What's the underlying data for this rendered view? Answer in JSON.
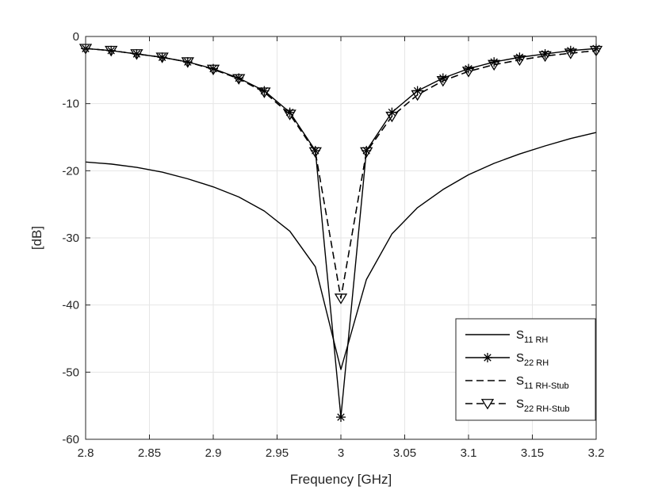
{
  "chart_data": {
    "type": "line",
    "xlabel": "Frequency [GHz]",
    "ylabel": "[dB]",
    "xlim": [
      2.8,
      3.2
    ],
    "ylim": [
      -60,
      0
    ],
    "grid": true,
    "legend_position": "bottom-right",
    "x_ticks": [
      "2.8",
      "2.85",
      "2.9",
      "2.95",
      "3",
      "3.05",
      "3.1",
      "3.15",
      "3.2"
    ],
    "y_ticks": [
      "0",
      "-10",
      "-20",
      "-30",
      "-40",
      "-50",
      "-60"
    ],
    "x": [
      2.8,
      2.82,
      2.84,
      2.86,
      2.88,
      2.9,
      2.92,
      2.94,
      2.96,
      2.98,
      3.0,
      3.02,
      3.04,
      3.06,
      3.08,
      3.1,
      3.12,
      3.14,
      3.16,
      3.18,
      3.2
    ],
    "series": [
      {
        "name_main": "S",
        "name_sub": "11 RH",
        "line": "solid",
        "marker": "none",
        "color": "#000000",
        "values": [
          -18.7,
          -19.0,
          -19.5,
          -20.2,
          -21.2,
          -22.4,
          -23.9,
          -26.0,
          -29.0,
          -34.3,
          -49.6,
          -36.2,
          -29.4,
          -25.5,
          -22.8,
          -20.6,
          -18.9,
          -17.5,
          -16.3,
          -15.2,
          -14.3
        ]
      },
      {
        "name_main": "S",
        "name_sub": "22 RH",
        "line": "solid",
        "marker": "asterisk",
        "color": "#000000",
        "values": [
          -1.8,
          -2.1,
          -2.6,
          -3.1,
          -3.8,
          -4.8,
          -6.2,
          -8.1,
          -11.3,
          -17.0,
          -56.7,
          -17.0,
          -11.3,
          -8.1,
          -6.2,
          -4.8,
          -3.8,
          -3.1,
          -2.6,
          -2.1,
          -1.8
        ]
      },
      {
        "name_main": "S",
        "name_sub": "11 RH-Stub",
        "line": "dashed",
        "marker": "none",
        "color": "#000000",
        "values": [
          -1.8,
          -2.1,
          -2.6,
          -3.1,
          -3.8,
          -4.9,
          -6.3,
          -8.3,
          -11.6,
          -17.2,
          -39.0,
          -17.2,
          -11.9,
          -8.7,
          -6.6,
          -5.2,
          -4.2,
          -3.5,
          -2.9,
          -2.5,
          -2.1
        ]
      },
      {
        "name_main": "S",
        "name_sub": "22 RH-Stub",
        "line": "dashed",
        "marker": "triangle-down",
        "color": "#000000",
        "values": [
          -1.8,
          -2.1,
          -2.6,
          -3.1,
          -3.8,
          -4.9,
          -6.3,
          -8.3,
          -11.6,
          -17.2,
          -39.0,
          -17.2,
          -11.9,
          -8.7,
          -6.6,
          -5.2,
          -4.2,
          -3.5,
          -2.9,
          -2.5,
          -2.1
        ]
      }
    ]
  }
}
